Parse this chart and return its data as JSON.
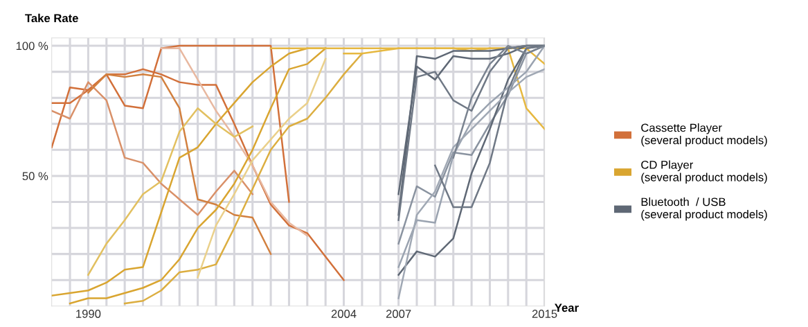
{
  "chart_data": {
    "type": "line",
    "ylabel": "Take Rate",
    "xlabel": "Year",
    "xlim": [
      1988,
      2015
    ],
    "ylim": [
      0,
      103
    ],
    "xticks": [
      {
        "value": 1989,
        "label": null
      },
      1990,
      {
        "value": 1991,
        "label": null
      },
      {
        "value": 1992,
        "label": null
      },
      {
        "value": 1993,
        "label": null
      },
      {
        "value": 1994,
        "label": null
      },
      {
        "value": 1995,
        "label": null
      },
      {
        "value": 1996,
        "label": null
      },
      {
        "value": 1997,
        "label": null
      },
      {
        "value": 1998,
        "label": null
      },
      {
        "value": 1999,
        "label": null
      },
      {
        "value": 2000,
        "label": null
      },
      {
        "value": 2001,
        "label": null
      },
      {
        "value": 2002,
        "label": null
      },
      {
        "value": 2003,
        "label": null
      },
      2004,
      {
        "value": 2005,
        "label": null
      },
      {
        "value": 2006,
        "label": null
      },
      2007,
      {
        "value": 2008,
        "label": null
      },
      {
        "value": 2009,
        "label": null
      },
      {
        "value": 2010,
        "label": null
      },
      {
        "value": 2011,
        "label": null
      },
      {
        "value": 2012,
        "label": null
      },
      {
        "value": 2013,
        "label": null
      },
      {
        "value": 2014,
        "label": null
      },
      2015
    ],
    "yticks": [
      {
        "value": 10,
        "label": null
      },
      {
        "value": 20,
        "label": null
      },
      {
        "value": 30,
        "label": null
      },
      {
        "value": 40,
        "label": null
      },
      {
        "value": 50,
        "label": "50 %"
      },
      {
        "value": 60,
        "label": null
      },
      {
        "value": 70,
        "label": null
      },
      {
        "value": 80,
        "label": null
      },
      {
        "value": 90,
        "label": null
      },
      {
        "value": 100,
        "label": "100 %"
      }
    ],
    "grid": true,
    "legend": "right",
    "marker": "none",
    "line_style": "solid",
    "series": [
      {
        "name": "Cassette Player\n(several product models)",
        "color": "#d2703a",
        "x": [
          1988,
          1989,
          1990,
          1991,
          1992,
          1993,
          1994,
          1995,
          1996,
          1997,
          1998,
          1999,
          2000,
          2001
        ],
        "values": [
          61,
          84,
          83,
          89,
          77,
          76,
          99,
          100,
          100,
          100,
          100,
          100,
          100,
          40
        ]
      },
      {
        "color": "#d2703a",
        "x": [
          1988,
          1989,
          1990,
          1991,
          1992,
          1993,
          1994,
          1995,
          1996,
          1997,
          1998,
          1999,
          2000,
          2001,
          2002,
          2003,
          2004
        ],
        "values": [
          78,
          78,
          83,
          89,
          89,
          91,
          89,
          86,
          85,
          85,
          70,
          54,
          39,
          31,
          28,
          19,
          10
        ]
      },
      {
        "color": "#d99068",
        "x": [
          1988,
          1989,
          1990,
          1991,
          1992,
          1993,
          1994,
          1995,
          1996,
          1997,
          1998,
          1999
        ],
        "values": [
          75,
          72,
          86,
          79,
          57,
          55,
          47,
          41,
          35,
          44,
          52,
          43
        ]
      },
      {
        "color": "#d2803f",
        "x": [
          1990,
          1991,
          1992,
          1993,
          1994,
          1995,
          1996,
          1997,
          1998,
          1999,
          2000
        ],
        "values": [
          82,
          89,
          88,
          89,
          88,
          76,
          41,
          39,
          35,
          34,
          20
        ]
      },
      {
        "color": "#e8b8a0",
        "x": [
          1994,
          1995,
          1996,
          1997,
          1998,
          1999,
          2000,
          2001,
          2002
        ],
        "values": [
          99,
          99,
          87,
          75,
          65,
          54,
          40,
          32,
          27
        ]
      },
      {
        "name": "CD Player\n(several product models)",
        "color": "#d9a530",
        "x": [
          1988,
          1989,
          1990,
          1991,
          1992,
          1993,
          1994,
          1995,
          1996,
          1997,
          1998,
          1999,
          2000,
          2001,
          2002,
          2003
        ],
        "values": [
          4,
          5,
          6,
          9,
          14,
          15,
          36,
          57,
          61,
          70,
          78,
          86,
          92,
          97,
          99,
          99
        ]
      },
      {
        "color": "#d9a530",
        "x": [
          1989,
          1990,
          1991,
          1992,
          1993,
          1994,
          1995,
          1996,
          1997,
          1998,
          1999,
          2000,
          2001,
          2002,
          2003
        ],
        "values": [
          1,
          3,
          3,
          5,
          7,
          10,
          18,
          30,
          37,
          47,
          60,
          76,
          91,
          93,
          99
        ]
      },
      {
        "color": "#dcae40",
        "x": [
          1992,
          1993,
          1994,
          1995,
          1996,
          1997,
          1998,
          1999,
          2000,
          2001,
          2002,
          2003,
          2004,
          2005
        ],
        "values": [
          1,
          2,
          6,
          13,
          14,
          16,
          30,
          45,
          60,
          69,
          72,
          80,
          89,
          97
        ]
      },
      {
        "color": "#ead08a",
        "x": [
          1996,
          1997,
          1998,
          1999,
          2000,
          2001,
          2002,
          2003
        ],
        "values": [
          11,
          31,
          43,
          56,
          64,
          72,
          78,
          95
        ]
      },
      {
        "color": "#e2c060",
        "x": [
          1990,
          1991,
          1992,
          1993,
          1994,
          1995,
          1996,
          1997,
          1998,
          1999
        ],
        "values": [
          12,
          24,
          33,
          43,
          48,
          67,
          76,
          70,
          65,
          69
        ]
      },
      {
        "color": "#e6b840",
        "x": [
          2000,
          2001,
          2002,
          2003,
          2004,
          2005,
          2006,
          2007,
          2008,
          2009,
          2010,
          2011,
          2012,
          2013,
          2014,
          2015
        ],
        "values": [
          99,
          99,
          99,
          99,
          99,
          99,
          99,
          99,
          99,
          99,
          99,
          99,
          99,
          99,
          76,
          68
        ]
      },
      {
        "color": "#e6b840",
        "x": [
          2004,
          2005,
          2006,
          2007,
          2008,
          2009,
          2010,
          2011,
          2012,
          2013,
          2014,
          2015
        ],
        "values": [
          97,
          97,
          98,
          99,
          99,
          99,
          99,
          98,
          99,
          99,
          99,
          93
        ]
      },
      {
        "name": "Bluetooth  / USB\n(several product models)",
        "color": "#5f6875",
        "x": [
          2007,
          2008,
          2009,
          2010,
          2011,
          2012,
          2013,
          2014,
          2015
        ],
        "values": [
          35,
          96,
          95,
          98,
          98,
          98,
          99,
          100,
          100
        ]
      },
      {
        "color": "#5f6875",
        "x": [
          2007,
          2008,
          2009,
          2010,
          2011,
          2012,
          2013,
          2014,
          2015
        ],
        "values": [
          43,
          92,
          87,
          96,
          95,
          95,
          97,
          100,
          100
        ]
      },
      {
        "color": "#6f7885",
        "x": [
          2007,
          2008,
          2009,
          2010,
          2011,
          2012,
          2013,
          2014,
          2015
        ],
        "values": [
          33,
          88,
          90,
          79,
          75,
          90,
          99,
          100,
          100
        ]
      },
      {
        "color": "#8a93a0",
        "x": [
          2007,
          2008,
          2009,
          2010,
          2011,
          2012,
          2013,
          2014,
          2015
        ],
        "values": [
          24,
          46,
          42,
          59,
          58,
          70,
          81,
          97,
          100
        ]
      },
      {
        "color": "#5f6875",
        "x": [
          2007,
          2008,
          2009,
          2010,
          2011,
          2012,
          2013,
          2014,
          2015
        ],
        "values": [
          12,
          21,
          19,
          26,
          51,
          68,
          87,
          99,
          100
        ]
      },
      {
        "color": "#9aa3b0",
        "x": [
          2007,
          2008,
          2009,
          2010,
          2011,
          2012,
          2013,
          2014,
          2015
        ],
        "values": [
          15,
          33,
          32,
          58,
          71,
          78,
          84,
          90,
          100
        ]
      },
      {
        "color": "#a0a8b4",
        "x": [
          2007,
          2008,
          2009,
          2010,
          2011,
          2012,
          2013,
          2014,
          2015
        ],
        "values": [
          3,
          35,
          44,
          61,
          68,
          75,
          82,
          88,
          91
        ]
      },
      {
        "color": "#6f7885",
        "x": [
          2009,
          2010,
          2011,
          2012,
          2013,
          2014,
          2015
        ],
        "values": [
          54,
          38,
          38,
          55,
          83,
          99,
          100
        ]
      },
      {
        "color": "#7a8390",
        "x": [
          2010,
          2011,
          2012,
          2013,
          2014,
          2015
        ],
        "values": [
          57,
          80,
          93,
          100,
          97,
          100
        ]
      }
    ]
  }
}
